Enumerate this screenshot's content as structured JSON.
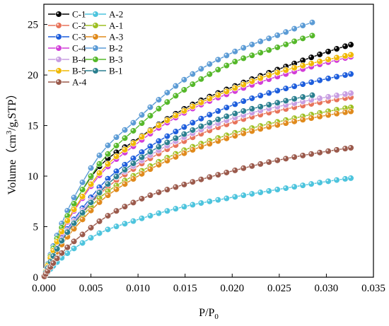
{
  "chart_data": {
    "type": "line",
    "title": "",
    "xlabel": "P/P",
    "xlabel_sub": "0",
    "ylabel_prefix": "Volume（cm",
    "ylabel_sup": "3",
    "ylabel_suffix": "/g,STP）",
    "xlim": [
      0,
      0.035
    ],
    "ylim": [
      0,
      27
    ],
    "x_ticks": [
      "0.000",
      "0.005",
      "0.010",
      "0.015",
      "0.020",
      "0.025",
      "0.030",
      "0.035"
    ],
    "y_ticks": [
      "0",
      "5",
      "10",
      "15",
      "20",
      "25"
    ],
    "grid": false,
    "legend_position": "top-left",
    "series": [
      {
        "name": "C-1",
        "color": "#000000",
        "x_end": 0.0326,
        "values_at": [
          [
            0,
            0
          ],
          [
            0.005,
            9.9
          ],
          [
            0.01,
            13.7
          ],
          [
            0.015,
            16.7
          ],
          [
            0.02,
            18.8
          ],
          [
            0.025,
            20.6
          ],
          [
            0.0326,
            23.0
          ]
        ]
      },
      {
        "name": "A-2",
        "color": "#4dc4dd",
        "x_end": 0.0326,
        "values_at": [
          [
            0,
            0
          ],
          [
            0.005,
            3.9
          ],
          [
            0.01,
            5.7
          ],
          [
            0.015,
            7.0
          ],
          [
            0.02,
            7.9
          ],
          [
            0.025,
            8.7
          ],
          [
            0.0326,
            9.8
          ]
        ]
      },
      {
        "name": "C-2",
        "color": "#e8735a",
        "x_end": 0.0326,
        "values_at": [
          [
            0,
            0
          ],
          [
            0.005,
            7.3
          ],
          [
            0.01,
            11.0
          ],
          [
            0.015,
            13.5
          ],
          [
            0.02,
            15.3
          ],
          [
            0.025,
            16.5
          ],
          [
            0.0326,
            17.8
          ]
        ]
      },
      {
        "name": "A-1",
        "color": "#9dbf22",
        "x_end": 0.0326,
        "values_at": [
          [
            0,
            0
          ],
          [
            0.005,
            7.0
          ],
          [
            0.01,
            10.3
          ],
          [
            0.015,
            12.6
          ],
          [
            0.02,
            14.2
          ],
          [
            0.025,
            15.4
          ],
          [
            0.0326,
            16.8
          ]
        ]
      },
      {
        "name": "C-3",
        "color": "#1d5ddc",
        "x_end": 0.0326,
        "values_at": [
          [
            0,
            0
          ],
          [
            0.005,
            7.9
          ],
          [
            0.01,
            12.1
          ],
          [
            0.015,
            14.9
          ],
          [
            0.02,
            17.0
          ],
          [
            0.025,
            18.5
          ],
          [
            0.0326,
            20.1
          ]
        ]
      },
      {
        "name": "A-3",
        "color": "#e08a1c",
        "x_end": 0.0326,
        "values_at": [
          [
            0,
            0
          ],
          [
            0.005,
            6.6
          ],
          [
            0.01,
            10.0
          ],
          [
            0.015,
            12.3
          ],
          [
            0.02,
            13.9
          ],
          [
            0.025,
            15.1
          ],
          [
            0.0326,
            16.4
          ]
        ]
      },
      {
        "name": "C-4",
        "color": "#d23ed8",
        "x_end": 0.0326,
        "values_at": [
          [
            0,
            0
          ],
          [
            0.005,
            9.0
          ],
          [
            0.01,
            13.3
          ],
          [
            0.015,
            16.3
          ],
          [
            0.02,
            18.3
          ],
          [
            0.025,
            19.9
          ],
          [
            0.0326,
            21.8
          ]
        ]
      },
      {
        "name": "B-2",
        "color": "#5b9bd5",
        "x_end": 0.0285,
        "values_at": [
          [
            0,
            0
          ],
          [
            0.005,
            10.8
          ],
          [
            0.01,
            15.7
          ],
          [
            0.015,
            19.6
          ],
          [
            0.02,
            22.2
          ],
          [
            0.025,
            24.0
          ],
          [
            0.0285,
            25.2
          ]
        ]
      },
      {
        "name": "B-4",
        "color": "#c89ee2",
        "x_end": 0.0326,
        "values_at": [
          [
            0,
            0
          ],
          [
            0.005,
            7.6
          ],
          [
            0.01,
            11.3
          ],
          [
            0.015,
            13.9
          ],
          [
            0.02,
            15.7
          ],
          [
            0.025,
            16.9
          ],
          [
            0.0326,
            18.2
          ]
        ]
      },
      {
        "name": "B-3",
        "color": "#55b82a",
        "x_end": 0.0285,
        "values_at": [
          [
            0,
            0
          ],
          [
            0.005,
            10.0
          ],
          [
            0.01,
            14.9
          ],
          [
            0.015,
            18.6
          ],
          [
            0.02,
            21.2
          ],
          [
            0.025,
            22.8
          ],
          [
            0.0285,
            23.9
          ]
        ]
      },
      {
        "name": "B-5",
        "color": "#f0b800",
        "x_end": 0.0326,
        "values_at": [
          [
            0,
            0
          ],
          [
            0.005,
            9.2
          ],
          [
            0.01,
            13.6
          ],
          [
            0.015,
            16.5
          ],
          [
            0.02,
            18.6
          ],
          [
            0.025,
            20.3
          ],
          [
            0.0326,
            22.0
          ]
        ]
      },
      {
        "name": "B-1",
        "color": "#2a7f8f",
        "x_end": 0.0285,
        "values_at": [
          [
            0,
            0
          ],
          [
            0.005,
            7.4
          ],
          [
            0.01,
            11.6
          ],
          [
            0.015,
            14.2
          ],
          [
            0.02,
            16.1
          ],
          [
            0.025,
            17.3
          ],
          [
            0.0285,
            18.0
          ]
        ]
      },
      {
        "name": "A-4",
        "color": "#9b5a4c",
        "x_end": 0.0326,
        "values_at": [
          [
            0,
            0
          ],
          [
            0.005,
            4.9
          ],
          [
            0.01,
            7.6
          ],
          [
            0.015,
            9.2
          ],
          [
            0.02,
            10.5
          ],
          [
            0.025,
            11.6
          ],
          [
            0.0326,
            12.8
          ]
        ]
      }
    ]
  }
}
